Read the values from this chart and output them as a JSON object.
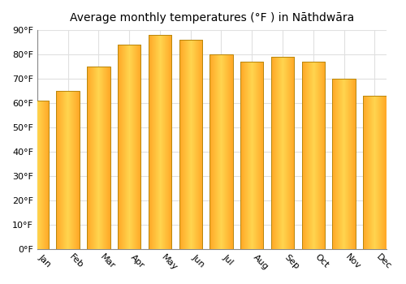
{
  "title": "Average monthly temperatures (°F ) in Nāthdwāra",
  "months": [
    "Jan",
    "Feb",
    "Mar",
    "Apr",
    "May",
    "Jun",
    "Jul",
    "Aug",
    "Sep",
    "Oct",
    "Nov",
    "Dec"
  ],
  "values": [
    61,
    65,
    75,
    84,
    88,
    86,
    80,
    77,
    79,
    77,
    70,
    63
  ],
  "bar_color": "#FFA726",
  "bar_edge_color": "#B8860B",
  "background_color": "#ffffff",
  "plot_bg_color": "#ffffff",
  "ylim": [
    0,
    90
  ],
  "yticks": [
    0,
    10,
    20,
    30,
    40,
    50,
    60,
    70,
    80,
    90
  ],
  "ytick_labels": [
    "0°F",
    "10°F",
    "20°F",
    "30°F",
    "40°F",
    "50°F",
    "60°F",
    "70°F",
    "80°F",
    "90°F"
  ],
  "title_fontsize": 10,
  "tick_fontsize": 8,
  "grid_color": "#e0e0e0",
  "bar_width": 0.75,
  "xlabel_rotation": -45
}
